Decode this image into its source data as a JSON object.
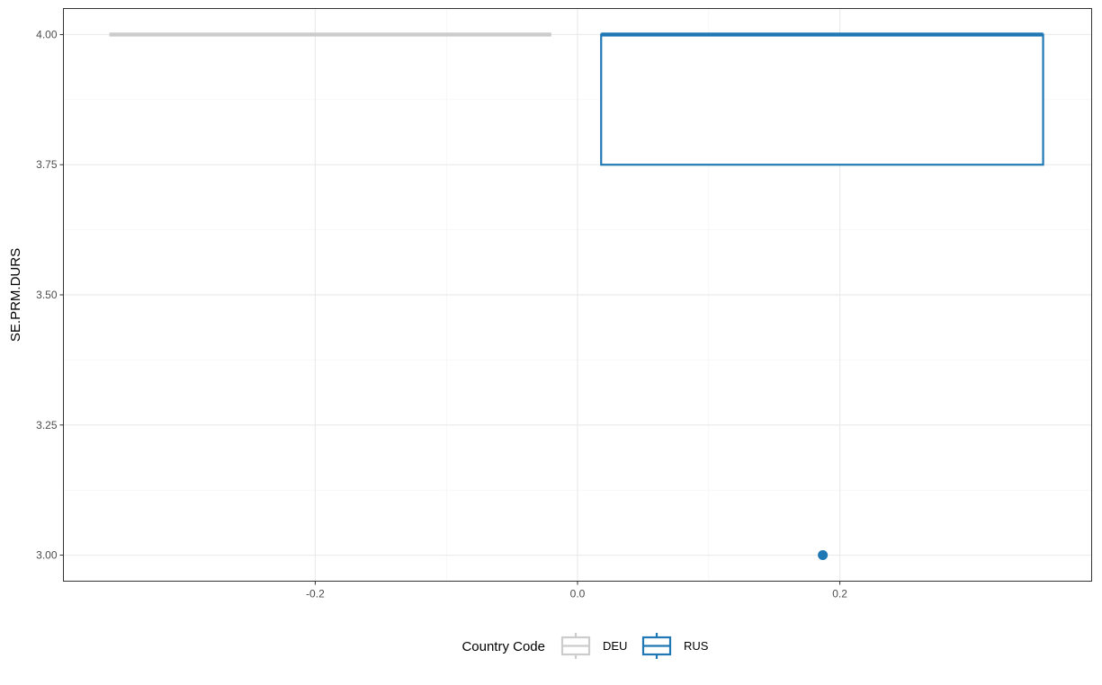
{
  "chart_data": {
    "type": "box",
    "title": "",
    "xlabel": "",
    "ylabel": "SE.PRM.DURS",
    "xlim": [
      -0.392,
      0.392
    ],
    "ylim": [
      2.95,
      4.05
    ],
    "x_ticks": [
      -0.2,
      0.0,
      0.2
    ],
    "x_tick_labels": [
      "-0.2",
      "0.0",
      "0.2"
    ],
    "y_ticks": [
      3.0,
      3.25,
      3.5,
      3.75,
      4.0
    ],
    "y_tick_labels": [
      "3.00",
      "3.25",
      "3.50",
      "3.75",
      "4.00"
    ],
    "grid": true,
    "legend": {
      "title": "Country Code",
      "position": "bottom",
      "entries": [
        "DEU",
        "RUS"
      ]
    },
    "series": [
      {
        "name": "DEU",
        "color": "#cccccc",
        "x_range": [
          -0.357,
          -0.02
        ],
        "min": 4.0,
        "q1": 4.0,
        "median": 4.0,
        "q3": 4.0,
        "max": 4.0,
        "outliers": []
      },
      {
        "name": "RUS",
        "color": "#1f78b4",
        "x_range": [
          0.018,
          0.355
        ],
        "min": 3.75,
        "q1": 3.75,
        "median": 4.0,
        "q3": 4.0,
        "max": 4.0,
        "outliers": [
          {
            "x": 0.187,
            "y": 3.0
          }
        ]
      }
    ]
  }
}
